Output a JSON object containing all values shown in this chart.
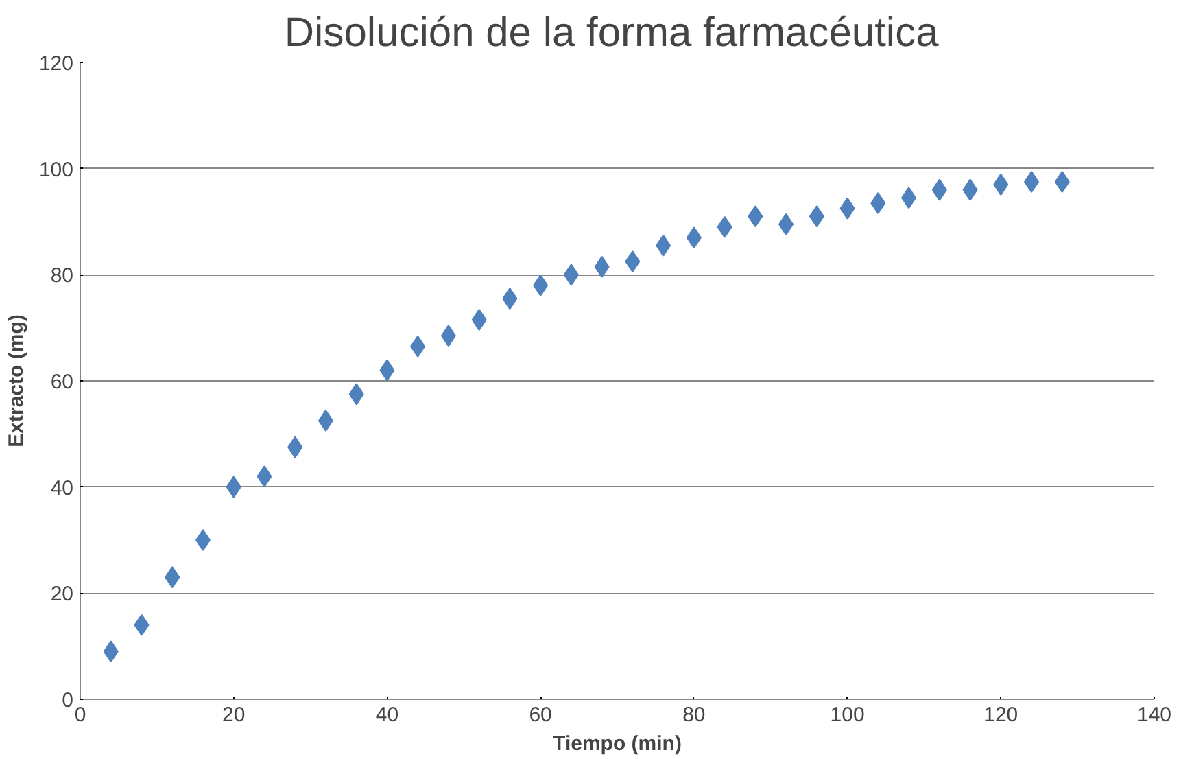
{
  "chart_data": {
    "type": "scatter",
    "title": "Disolución  de la forma farmacéutica",
    "xlabel": "Tiempo (min)",
    "ylabel": "Extracto (mg)",
    "x": [
      4,
      8,
      12,
      16,
      20,
      24,
      28,
      32,
      36,
      40,
      44,
      48,
      52,
      56,
      60,
      64,
      68,
      72,
      76,
      80,
      84,
      88,
      92,
      96,
      100,
      104,
      108,
      112,
      116,
      120,
      124,
      128
    ],
    "series": [
      {
        "color": "#4f81bd",
        "values": [
          9,
          14,
          23,
          30,
          40,
          42,
          47.5,
          52.5,
          57.5,
          62,
          66.5,
          68.5,
          71.5,
          75.5,
          78,
          80,
          81.5,
          82.5,
          85.5,
          87,
          89,
          91,
          89.5,
          91,
          92.5,
          93.5,
          94.5,
          96,
          96,
          97,
          97.5,
          97.5
        ]
      }
    ],
    "xlim": [
      0,
      140
    ],
    "xticks": [
      0,
      20,
      40,
      60,
      80,
      100,
      120,
      140
    ],
    "ylim": [
      0,
      120
    ],
    "yticks": [
      0,
      20,
      40,
      60,
      80,
      100,
      120
    ],
    "grid": "y",
    "marker": "diamond"
  }
}
